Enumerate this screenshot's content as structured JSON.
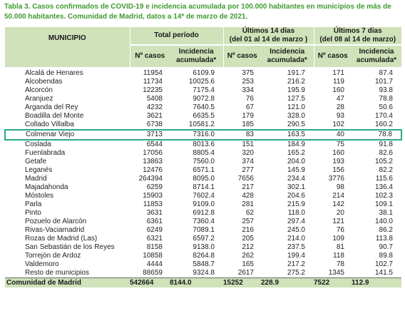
{
  "caption": {
    "line1": "Tabla 3. Casos confirmados de COVID-19 e incidencia acumulada por 100.000 habitantes en municipios de más de",
    "line2": "50.000 habitantes. Comunidad de Madrid, datos a 14* de marzo de 2021."
  },
  "header": {
    "municipio": "MUNICIPIO",
    "total_periodo": "Total período",
    "ultimos14_line1": "Últimos 14 días",
    "ultimos14_line2": "(del 01 al 14 de marzo )",
    "ultimos7_line1": "Últimos 7 días",
    "ultimos7_line2": "(del 08 al 14 de marzo)",
    "n_casos": "Nº casos",
    "incidencia_line1": "Incidencia",
    "incidencia_line2": "acumulada*"
  },
  "rows": [
    {
      "municipio": "Alcalá de Henares",
      "casos_total": "11954",
      "inc_total": "6109.9",
      "casos_14": "375",
      "inc_14": "191.7",
      "casos_7": "171",
      "inc_7": "87.4"
    },
    {
      "municipio": "Alcobendas",
      "casos_total": "11734",
      "inc_total": "10025.6",
      "casos_14": "253",
      "inc_14": "216.2",
      "casos_7": "119",
      "inc_7": "101.7"
    },
    {
      "municipio": "Alcorcón",
      "casos_total": "12235",
      "inc_total": "7175.4",
      "casos_14": "334",
      "inc_14": "195.9",
      "casos_7": "160",
      "inc_7": "93.8"
    },
    {
      "municipio": "Aranjuez",
      "casos_total": "5408",
      "inc_total": "9072.8",
      "casos_14": "76",
      "inc_14": "127.5",
      "casos_7": "47",
      "inc_7": "78.8"
    },
    {
      "municipio": "Arganda del Rey",
      "casos_total": "4232",
      "inc_total": "7640.5",
      "casos_14": "67",
      "inc_14": "121.0",
      "casos_7": "28",
      "inc_7": "50.6"
    },
    {
      "municipio": "Boadilla del Monte",
      "casos_total": "3621",
      "inc_total": "6635.5",
      "casos_14": "179",
      "inc_14": "328.0",
      "casos_7": "93",
      "inc_7": "170.4"
    },
    {
      "municipio": "Collado Villalba",
      "casos_total": "6738",
      "inc_total": "10581.2",
      "casos_14": "185",
      "inc_14": "290.5",
      "casos_7": "102",
      "inc_7": "160.2"
    },
    {
      "municipio": "Colmenar Viejo",
      "casos_total": "3713",
      "inc_total": "7316.0",
      "casos_14": "83",
      "inc_14": "163.5",
      "casos_7": "40",
      "inc_7": "78.8"
    },
    {
      "municipio": "Coslada",
      "casos_total": "6544",
      "inc_total": "8013.6",
      "casos_14": "151",
      "inc_14": "184.9",
      "casos_7": "75",
      "inc_7": "91.8"
    },
    {
      "municipio": "Fuenlabrada",
      "casos_total": "17056",
      "inc_total": "8805.4",
      "casos_14": "320",
      "inc_14": "165.2",
      "casos_7": "160",
      "inc_7": "82.6"
    },
    {
      "municipio": "Getafe",
      "casos_total": "13863",
      "inc_total": "7560.0",
      "casos_14": "374",
      "inc_14": "204.0",
      "casos_7": "193",
      "inc_7": "105.2"
    },
    {
      "municipio": "Leganés",
      "casos_total": "12476",
      "inc_total": "6571.1",
      "casos_14": "277",
      "inc_14": "145.9",
      "casos_7": "156",
      "inc_7": "82.2"
    },
    {
      "municipio": "Madrid",
      "casos_total": "264394",
      "inc_total": "8095.0",
      "casos_14": "7656",
      "inc_14": "234.4",
      "casos_7": "3776",
      "inc_7": "115.6"
    },
    {
      "municipio": "Majadahonda",
      "casos_total": "6259",
      "inc_total": "8714.1",
      "casos_14": "217",
      "inc_14": "302.1",
      "casos_7": "98",
      "inc_7": "136.4"
    },
    {
      "municipio": "Móstoles",
      "casos_total": "15903",
      "inc_total": "7602.4",
      "casos_14": "428",
      "inc_14": "204.6",
      "casos_7": "214",
      "inc_7": "102.3"
    },
    {
      "municipio": "Parla",
      "casos_total": "11853",
      "inc_total": "9109.0",
      "casos_14": "281",
      "inc_14": "215.9",
      "casos_7": "142",
      "inc_7": "109.1"
    },
    {
      "municipio": "Pinto",
      "casos_total": "3631",
      "inc_total": "6912.8",
      "casos_14": "62",
      "inc_14": "118.0",
      "casos_7": "20",
      "inc_7": "38.1"
    },
    {
      "municipio": "Pozuelo de Alarcón",
      "casos_total": "6361",
      "inc_total": "7360.4",
      "casos_14": "257",
      "inc_14": "297.4",
      "casos_7": "121",
      "inc_7": "140.0"
    },
    {
      "municipio": "Rivas-Vaciamadrid",
      "casos_total": "6249",
      "inc_total": "7089.1",
      "casos_14": "216",
      "inc_14": "245.0",
      "casos_7": "76",
      "inc_7": "86.2"
    },
    {
      "municipio": "Rozas de Madrid (Las)",
      "casos_total": "6321",
      "inc_total": "6597.2",
      "casos_14": "205",
      "inc_14": "214.0",
      "casos_7": "109",
      "inc_7": "113.8"
    },
    {
      "municipio": "San Sebastián de los Reyes",
      "casos_total": "8158",
      "inc_total": "9138.0",
      "casos_14": "212",
      "inc_14": "237.5",
      "casos_7": "81",
      "inc_7": "90.7"
    },
    {
      "municipio": "Torrejón de Ardoz",
      "casos_total": "10858",
      "inc_total": "8264.8",
      "casos_14": "262",
      "inc_14": "199.4",
      "casos_7": "118",
      "inc_7": "89.8"
    },
    {
      "municipio": "Valdemoro",
      "casos_total": "4444",
      "inc_total": "5848.7",
      "casos_14": "165",
      "inc_14": "217.2",
      "casos_7": "78",
      "inc_7": "102.7"
    },
    {
      "municipio": "Resto de municipios",
      "casos_total": "88659",
      "inc_total": "9324.8",
      "casos_14": "2617",
      "inc_14": "275.2",
      "casos_7": "1345",
      "inc_7": "141.5"
    }
  ],
  "total": {
    "municipio": "Comunidad de Madrid",
    "casos_total": "542664",
    "inc_total": "8144.0",
    "casos_14": "15252",
    "inc_14": "228.9",
    "casos_7": "7522",
    "inc_7": "112.9"
  },
  "highlight_row_index": 7,
  "colors": {
    "caption": "#3f9a2f",
    "header_bg": "#cfe2b9",
    "highlight_border": "#2aa888"
  }
}
